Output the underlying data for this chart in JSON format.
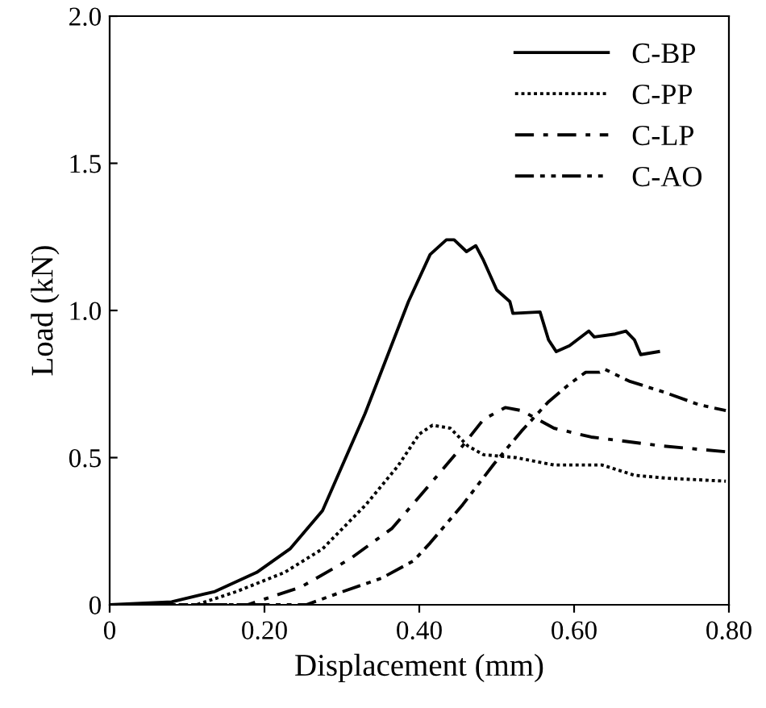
{
  "chart_data": {
    "type": "line",
    "xlabel": "Displacement (mm)",
    "ylabel": "Load (kN)",
    "xlim": [
      0,
      0.8
    ],
    "ylim": [
      0,
      2.0
    ],
    "xticks": [
      0,
      {
        "value": 0.2,
        "label": "0.20"
      },
      {
        "value": 0.4,
        "label": "0.40"
      },
      {
        "value": 0.6,
        "label": "0.60"
      },
      {
        "value": 0.8,
        "label": "0.80"
      }
    ],
    "yticks": [
      0,
      0.5,
      {
        "value": 1.0,
        "label": "1.0"
      },
      1.5,
      {
        "value": 2.0,
        "label": "2.0"
      }
    ],
    "grid": false,
    "legend": "top right",
    "marker": "none",
    "series": [
      {
        "name": "C-BP",
        "color": "#000000",
        "line_style": "solid",
        "x": [
          0,
          0.08,
          0.136,
          0.19,
          0.233,
          0.275,
          0.33,
          0.386,
          0.414,
          0.435,
          0.445,
          0.461,
          0.473,
          0.483,
          0.5,
          0.517,
          0.521,
          0.556,
          0.567,
          0.577,
          0.594,
          0.619,
          0.626,
          0.653,
          0.667,
          0.678,
          0.686,
          0.709
        ],
        "values": [
          0,
          0.01,
          0.045,
          0.11,
          0.19,
          0.32,
          0.65,
          1.03,
          1.19,
          1.24,
          1.24,
          1.2,
          1.22,
          1.17,
          1.07,
          1.03,
          0.99,
          0.995,
          0.9,
          0.86,
          0.88,
          0.93,
          0.91,
          0.92,
          0.93,
          0.9,
          0.85,
          0.86
        ]
      },
      {
        "name": "C-PP",
        "color": "#000000",
        "line_style": "dotted",
        "x": [
          0,
          0.112,
          0.164,
          0.226,
          0.275,
          0.331,
          0.372,
          0.4,
          0.417,
          0.44,
          0.4625,
          0.483,
          0.525,
          0.574,
          0.636,
          0.678,
          0.72,
          0.796
        ],
        "values": [
          0,
          0,
          0.045,
          0.11,
          0.19,
          0.34,
          0.47,
          0.58,
          0.61,
          0.6,
          0.54,
          0.51,
          0.5,
          0.475,
          0.475,
          0.44,
          0.43,
          0.42
        ]
      },
      {
        "name": "C-LP",
        "color": "#000000",
        "line_style": "dashdot",
        "x": [
          0,
          0.178,
          0.247,
          0.31,
          0.365,
          0.414,
          0.456,
          0.483,
          0.511,
          0.532,
          0.574,
          0.622,
          0.7125,
          0.796
        ],
        "values": [
          0,
          0,
          0.06,
          0.155,
          0.26,
          0.41,
          0.54,
          0.63,
          0.67,
          0.66,
          0.6,
          0.57,
          0.54,
          0.52
        ]
      },
      {
        "name": "C-AO",
        "color": "#000000",
        "line_style": "dashdotdot",
        "x": [
          0,
          0.254,
          0.296,
          0.351,
          0.393,
          0.414,
          0.456,
          0.497,
          0.532,
          0.567,
          0.594,
          0.615,
          0.633,
          0.64,
          0.671,
          0.719,
          0.761,
          0.796
        ],
        "values": [
          0,
          0,
          0.04,
          0.09,
          0.15,
          0.21,
          0.34,
          0.48,
          0.59,
          0.69,
          0.75,
          0.79,
          0.79,
          0.8,
          0.76,
          0.72,
          0.68,
          0.66
        ]
      }
    ]
  }
}
